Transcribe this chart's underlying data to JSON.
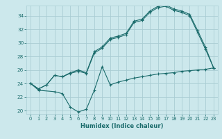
{
  "xlabel": "Humidex (Indice chaleur)",
  "bg_color": "#cce8ec",
  "grid_color": "#aacdd4",
  "line_color": "#1a6b6b",
  "ylim": [
    19.5,
    35.5
  ],
  "xlim": [
    -0.5,
    23.5
  ],
  "yticks": [
    20,
    22,
    24,
    26,
    28,
    30,
    32,
    34
  ],
  "xticks": [
    0,
    1,
    2,
    3,
    4,
    5,
    6,
    7,
    8,
    9,
    10,
    11,
    12,
    13,
    14,
    15,
    16,
    17,
    18,
    19,
    20,
    21,
    22,
    23
  ],
  "line1_x": [
    0,
    1,
    2,
    3,
    4,
    5,
    6,
    7,
    8,
    9,
    10,
    11,
    12,
    13,
    14,
    15,
    16,
    17,
    18,
    19,
    20,
    21,
    22,
    23
  ],
  "line1_y": [
    24.0,
    23.2,
    23.8,
    25.2,
    25.0,
    25.5,
    25.8,
    25.5,
    28.5,
    29.2,
    30.5,
    30.8,
    31.2,
    33.0,
    33.3,
    34.5,
    35.2,
    35.4,
    34.8,
    34.5,
    34.0,
    31.5,
    29.0,
    26.3
  ],
  "line2_x": [
    0,
    1,
    3,
    4,
    5,
    6,
    7,
    8,
    9,
    10,
    11,
    12,
    13,
    14,
    15,
    16,
    17,
    18,
    19,
    20,
    21,
    22,
    23
  ],
  "line2_y": [
    24.0,
    23.0,
    22.8,
    22.5,
    20.5,
    19.8,
    20.2,
    23.0,
    26.5,
    23.8,
    24.2,
    24.5,
    24.8,
    25.0,
    25.2,
    25.4,
    25.5,
    25.6,
    25.8,
    25.9,
    26.0,
    26.1,
    26.3
  ],
  "line3_x": [
    0,
    1,
    2,
    3,
    4,
    5,
    6,
    7,
    8,
    9,
    10,
    11,
    12,
    13,
    14,
    15,
    16,
    17,
    18,
    19,
    20,
    21,
    22,
    23
  ],
  "line3_y": [
    24.0,
    23.2,
    23.8,
    25.2,
    25.0,
    25.6,
    26.0,
    25.6,
    28.7,
    29.4,
    30.7,
    31.0,
    31.4,
    33.2,
    33.5,
    34.7,
    35.4,
    35.6,
    35.0,
    34.7,
    34.2,
    31.8,
    29.3,
    26.3
  ]
}
